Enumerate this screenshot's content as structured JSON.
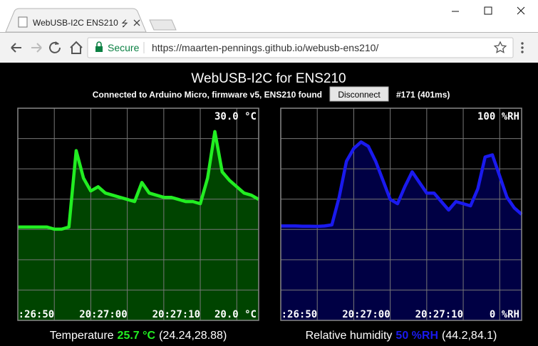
{
  "browser": {
    "tab_title": "WebUSB-I2C ENS210",
    "secure": "Secure",
    "url": "https://maarten-pennings.github.io/webusb-ens210/"
  },
  "page": {
    "title": "WebUSB-I2C for ENS210",
    "status": "Connected to Arduino Micro, firmware v5, ENS210 found",
    "button": "Disconnect",
    "counter": "#171 (401ms)"
  },
  "chart_data": [
    {
      "type": "line",
      "label": "Temperature",
      "reading": "25.7 °C",
      "range": "(24.24,28.88)",
      "color": "#22ee22",
      "fill": "#004400",
      "xlim": [
        "20:26:45",
        "20:27:18"
      ],
      "xticks": [
        {
          "value": "20:26:50",
          "label": ":26:50"
        },
        "20:27:00",
        "20:27:10"
      ],
      "ylim": [
        20,
        30
      ],
      "yticks": [
        {
          "value": 30,
          "label": "30.0 °C"
        },
        {
          "value": 20,
          "label": "20.0 °C"
        }
      ],
      "x": [
        "20:26:45",
        "20:26:46",
        "20:26:47",
        "20:26:48",
        "20:26:49",
        "20:26:50",
        "20:26:51",
        "20:26:52",
        "20:26:53",
        "20:26:54",
        "20:26:55",
        "20:26:56",
        "20:26:57",
        "20:26:58",
        "20:26:59",
        "20:27:00",
        "20:27:01",
        "20:27:02",
        "20:27:03",
        "20:27:04",
        "20:27:05",
        "20:27:06",
        "20:27:07",
        "20:27:08",
        "20:27:09",
        "20:27:10",
        "20:27:11",
        "20:27:12",
        "20:27:13",
        "20:27:14",
        "20:27:15",
        "20:27:16",
        "20:27:17",
        "20:27:18"
      ],
      "values": [
        24.4,
        24.4,
        24.4,
        24.4,
        24.4,
        24.3,
        24.3,
        24.4,
        28.0,
        26.7,
        26.1,
        26.3,
        26.0,
        25.9,
        25.8,
        25.7,
        25.6,
        26.5,
        26.0,
        25.9,
        25.8,
        25.8,
        25.7,
        25.6,
        25.6,
        25.5,
        26.7,
        28.9,
        27.0,
        26.6,
        26.3,
        26.0,
        25.9,
        25.7
      ]
    },
    {
      "type": "line",
      "label": "Relative humidity",
      "reading": "50 %RH",
      "range": "(44.2,84.1)",
      "color": "#1a1aee",
      "fill": "#000044",
      "xlim": [
        "20:26:45",
        "20:27:18"
      ],
      "xticks": [
        {
          "value": "20:26:50",
          "label": ":26:50"
        },
        "20:27:00",
        "20:27:10"
      ],
      "ylim": [
        0,
        100
      ],
      "yticks": [
        {
          "value": 100,
          "label": "100 %RH"
        },
        {
          "value": 0,
          "label": "0 %RH"
        }
      ],
      "x": [
        "20:26:45",
        "20:26:46",
        "20:26:47",
        "20:26:48",
        "20:26:49",
        "20:26:50",
        "20:26:51",
        "20:26:52",
        "20:26:53",
        "20:26:54",
        "20:26:55",
        "20:26:56",
        "20:26:57",
        "20:26:58",
        "20:26:59",
        "20:27:00",
        "20:27:01",
        "20:27:02",
        "20:27:03",
        "20:27:04",
        "20:27:05",
        "20:27:06",
        "20:27:07",
        "20:27:08",
        "20:27:09",
        "20:27:10",
        "20:27:11",
        "20:27:12",
        "20:27:13",
        "20:27:14",
        "20:27:15",
        "20:27:16",
        "20:27:17",
        "20:27:18"
      ],
      "values": [
        44.5,
        44.5,
        44.5,
        44.4,
        44.4,
        44.3,
        44.5,
        45,
        58,
        75,
        81,
        84.1,
        82,
        75,
        66,
        57,
        55,
        63,
        70,
        65,
        60,
        60,
        56,
        52,
        56,
        55,
        54,
        62,
        77,
        78,
        68,
        58,
        53,
        50
      ]
    }
  ]
}
